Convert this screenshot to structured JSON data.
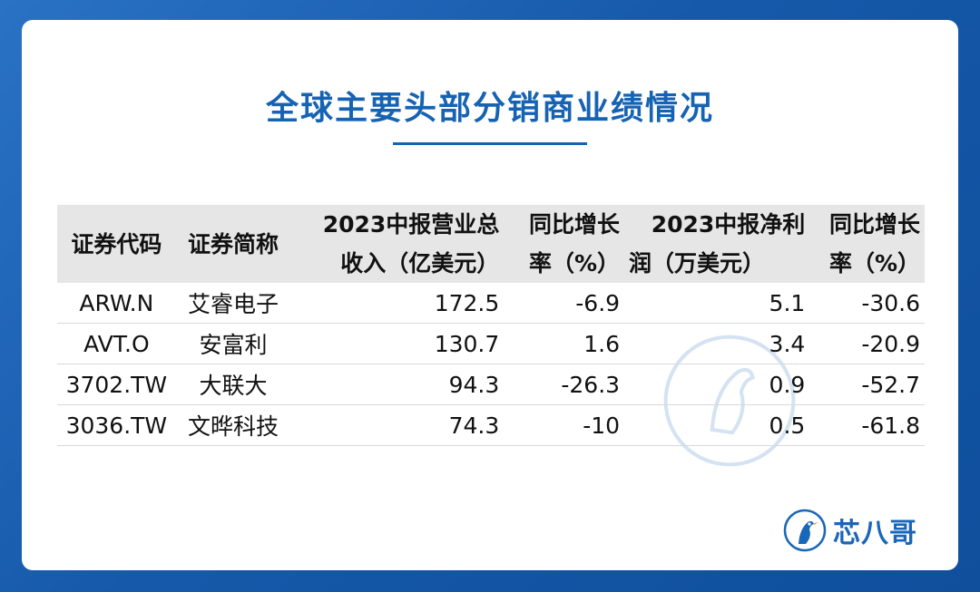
{
  "page": {
    "title": "全球主要头部分销商业绩情况"
  },
  "table": {
    "headers": [
      {
        "line1": "证券代码",
        "line2": ""
      },
      {
        "line1": "证券简称",
        "line2": ""
      },
      {
        "line1": "2023中报营业总",
        "line2": "收入（亿美元）"
      },
      {
        "line1": "同比增长",
        "line2": "率（%）"
      },
      {
        "line1": "2023中报净利",
        "line2": "润（万美元）"
      },
      {
        "line1": "同比增长",
        "line2": "率（%）"
      }
    ],
    "rows": [
      {
        "code": "ARW.N",
        "name": "艾睿电子",
        "revenue": "172.5",
        "revenue_yoy": "-6.9",
        "net_profit": "5.1",
        "profit_yoy": "-30.6"
      },
      {
        "code": "AVT.O",
        "name": "安富利",
        "revenue": "130.7",
        "revenue_yoy": "1.6",
        "net_profit": "3.4",
        "profit_yoy": "-20.9"
      },
      {
        "code": "3702.TW",
        "name": "大联大",
        "revenue": "94.3",
        "revenue_yoy": "-26.3",
        "net_profit": "0.9",
        "profit_yoy": "-52.7"
      },
      {
        "code": "3036.TW",
        "name": "文晔科技",
        "revenue": "74.3",
        "revenue_yoy": "-10",
        "net_profit": "0.5",
        "profit_yoy": "-61.8"
      }
    ]
  },
  "brand": {
    "logo_text": "芯八哥",
    "icon": "bird-logo-icon"
  },
  "colors": {
    "background": "#1a5fb0",
    "title": "#1663b3",
    "header_bg": "#e6e6e6",
    "accent": "#1a66b8"
  }
}
